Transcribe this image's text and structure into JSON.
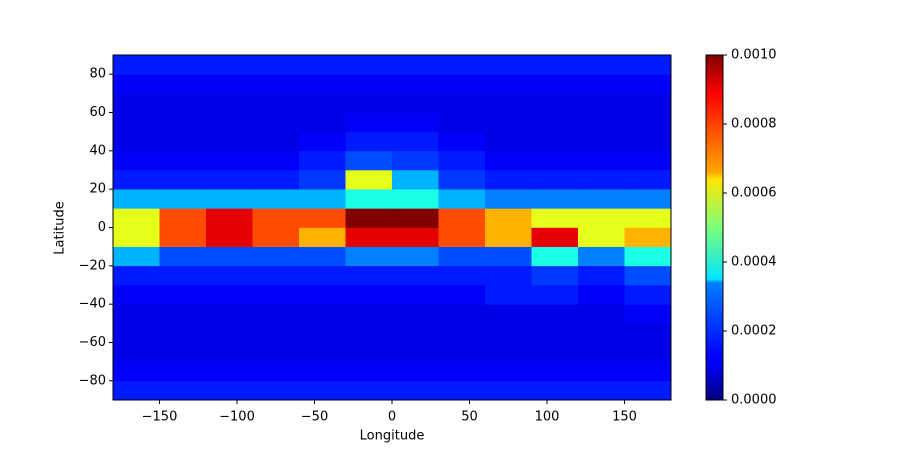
{
  "chart_data": {
    "type": "heatmap",
    "x_label": "Longitude",
    "y_label": "Latitude",
    "colormap": "jet",
    "xlim": [
      -180,
      180
    ],
    "ylim": [
      -90,
      90
    ],
    "xticks": [
      {
        "value": -150,
        "label": "−150"
      },
      {
        "value": -100,
        "label": "−100"
      },
      {
        "value": -50,
        "label": "−50"
      },
      0,
      50,
      100,
      150
    ],
    "yticks": [
      {
        "value": -80,
        "label": "−80"
      },
      {
        "value": -60,
        "label": "−60"
      },
      {
        "value": -40,
        "label": "−40"
      },
      {
        "value": -20,
        "label": "−20"
      },
      0,
      20,
      40,
      60,
      80
    ],
    "xbins": [
      -180,
      -150,
      -120,
      -90,
      -60,
      -30,
      0,
      30,
      60,
      90,
      120,
      150,
      180
    ],
    "ybins": [
      -90,
      -80,
      -70,
      -60,
      -50,
      -40,
      -30,
      -20,
      -10,
      0,
      10,
      20,
      30,
      40,
      50,
      60,
      70,
      80,
      90
    ],
    "values": [
      [
        0.00015,
        0.00015,
        0.00015,
        0.00015,
        0.00015,
        0.00015,
        0.00015,
        0.00015,
        0.00015,
        0.00015,
        0.00015,
        0.00015
      ],
      [
        0.00012,
        0.00012,
        0.00012,
        0.00012,
        0.00012,
        0.00012,
        0.00012,
        0.00012,
        0.00012,
        0.00012,
        0.00012,
        0.00012
      ],
      [
        0.0001,
        0.0001,
        0.0001,
        0.0001,
        0.0001,
        0.0001,
        0.0001,
        0.0001,
        0.0001,
        0.0001,
        0.0001,
        0.0001
      ],
      [
        0.0001,
        0.0001,
        0.0001,
        0.0001,
        0.0001,
        0.0001,
        0.0001,
        0.0001,
        0.0001,
        0.0001,
        0.0001,
        0.0001
      ],
      [
        0.0001,
        0.0001,
        0.0001,
        0.0001,
        0.0001,
        0.0001,
        0.0001,
        0.0001,
        0.0001,
        0.0001,
        0.0001,
        0.00012
      ],
      [
        0.00012,
        0.00012,
        0.00012,
        0.00012,
        0.00012,
        0.00012,
        0.00012,
        0.00012,
        0.00015,
        0.00015,
        0.00012,
        0.00015
      ],
      [
        0.00015,
        0.00015,
        0.00015,
        0.00015,
        0.00015,
        0.00015,
        0.00015,
        0.00015,
        0.00015,
        0.00018,
        0.00015,
        0.0002
      ],
      [
        0.0003,
        0.0002,
        0.0002,
        0.0002,
        0.0002,
        0.00025,
        0.00025,
        0.0002,
        0.0002,
        0.0004,
        0.00025,
        0.0004
      ],
      [
        0.0006,
        0.0008,
        0.0009,
        0.0008,
        0.0007,
        0.0009,
        0.0009,
        0.0008,
        0.0007,
        0.0009,
        0.0006,
        0.0007
      ],
      [
        0.0006,
        0.0008,
        0.0009,
        0.0008,
        0.0008,
        0.001,
        0.001,
        0.0008,
        0.0007,
        0.0006,
        0.0006,
        0.0006
      ],
      [
        0.0003,
        0.0003,
        0.0003,
        0.0003,
        0.0003,
        0.0004,
        0.0004,
        0.0003,
        0.00025,
        0.00025,
        0.00025,
        0.00025
      ],
      [
        0.00015,
        0.00015,
        0.00015,
        0.00015,
        0.00018,
        0.0006,
        0.0003,
        0.00018,
        0.00015,
        0.00015,
        0.00015,
        0.00015
      ],
      [
        0.00012,
        0.00012,
        0.00012,
        0.00012,
        0.00015,
        0.0002,
        0.00018,
        0.00015,
        0.00012,
        0.00012,
        0.00012,
        0.00012
      ],
      [
        0.0001,
        0.0001,
        0.0001,
        0.0001,
        0.00012,
        0.00015,
        0.00015,
        0.00012,
        0.0001,
        0.0001,
        0.0001,
        0.0001
      ],
      [
        0.0001,
        0.0001,
        0.0001,
        0.0001,
        0.0001,
        0.00012,
        0.00012,
        0.0001,
        0.0001,
        0.0001,
        0.0001,
        0.0001
      ],
      [
        0.0001,
        0.0001,
        0.0001,
        0.0001,
        0.0001,
        0.0001,
        0.0001,
        0.0001,
        0.0001,
        0.0001,
        0.0001,
        0.0001
      ],
      [
        0.00012,
        0.00012,
        0.00012,
        0.00012,
        0.00012,
        0.00012,
        0.00012,
        0.00012,
        0.00012,
        0.00012,
        0.00012,
        0.00012
      ],
      [
        0.00015,
        0.00015,
        0.00015,
        0.00015,
        0.00015,
        0.00015,
        0.00015,
        0.00015,
        0.00015,
        0.00015,
        0.00015,
        0.00015
      ]
    ],
    "clim": [
      0,
      0.001
    ],
    "cticks": [
      {
        "value": 0,
        "label": "0.0000"
      },
      {
        "value": 0.0002,
        "label": "0.0002"
      },
      {
        "value": 0.0004,
        "label": "0.0004"
      },
      {
        "value": 0.0006,
        "label": "0.0006"
      },
      {
        "value": 0.0008,
        "label": "0.0008"
      },
      {
        "value": 0.001,
        "label": "0.0010"
      }
    ]
  }
}
